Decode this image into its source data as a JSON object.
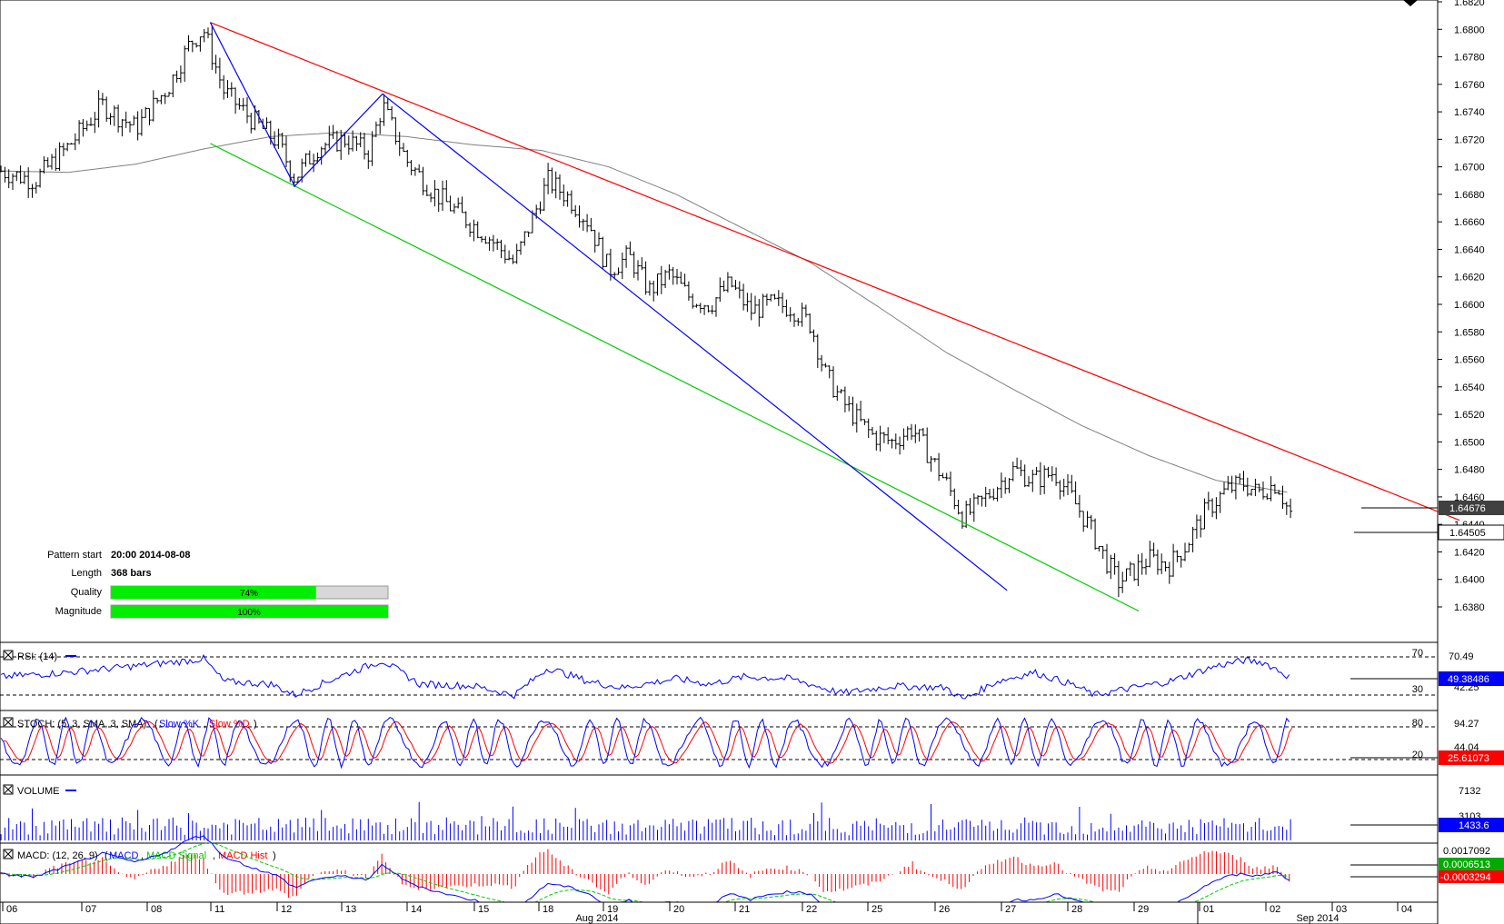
{
  "chart_data": {
    "type": "bar",
    "subtype": "ohlc",
    "price_axis": {
      "ticks": [
        "1.6820",
        "1.6800",
        "1.6780",
        "1.6760",
        "1.6740",
        "1.6720",
        "1.6700",
        "1.6680",
        "1.6660",
        "1.6640",
        "1.6620",
        "1.6600",
        "1.6580",
        "1.6560",
        "1.6540",
        "1.6520",
        "1.6500",
        "1.6480",
        "1.6460",
        "1.6440",
        "1.6420",
        "1.6400",
        "1.6380"
      ],
      "ylim": [
        1.6375,
        1.682
      ]
    },
    "x_axis": {
      "day_labels": [
        "06",
        "07",
        "08",
        "11",
        "12",
        "13",
        "14",
        "15",
        "18",
        "19",
        "20",
        "21",
        "22",
        "25",
        "26",
        "27",
        "28",
        "29",
        "01",
        "02",
        "03",
        "04"
      ],
      "month_labels": [
        "Aug 2014",
        "Sep 2014"
      ]
    },
    "current_price_label": "1.64676",
    "last_price_label": "1.64505",
    "pattern": {
      "start_label": "Pattern start",
      "start_value": "20:00 2014-08-08",
      "length_label": "Length",
      "length_value": "368 bars",
      "quality_label": "Quality",
      "quality_pct": 74,
      "quality_text": "74%",
      "magnitude_label": "Magnitude",
      "magnitude_pct": 100,
      "magnitude_text": "100%"
    },
    "pattern_lines": [
      {
        "color": "#ff0000",
        "points": [
          [
            0.1,
            1.6805
          ],
          [
            18.6,
            1.6443
          ]
        ]
      },
      {
        "color": "#00cc00",
        "points": [
          [
            0.1,
            1.6717
          ],
          [
            13.85,
            1.6377
          ]
        ]
      },
      {
        "color": "#0000ff",
        "points": [
          [
            0.1,
            1.6805
          ],
          [
            1.35,
            1.6686
          ],
          [
            2.65,
            1.6753
          ],
          [
            11.9,
            1.6392
          ]
        ]
      }
    ],
    "price_path": [
      [
        -3.0,
        1.6697
      ],
      [
        -2.5,
        1.669
      ],
      [
        -2.0,
        1.6715
      ],
      [
        -1.5,
        1.6745
      ],
      [
        -1.0,
        1.6728
      ],
      [
        -0.5,
        1.676
      ],
      [
        -0.2,
        1.679
      ],
      [
        0.0,
        1.68
      ],
      [
        0.3,
        1.6755
      ],
      [
        0.7,
        1.6735
      ],
      [
        1.1,
        1.6718
      ],
      [
        1.35,
        1.6692
      ],
      [
        1.7,
        1.6715
      ],
      [
        2.1,
        1.672
      ],
      [
        2.45,
        1.671
      ],
      [
        2.65,
        1.6745
      ],
      [
        3.0,
        1.6705
      ],
      [
        3.4,
        1.6682
      ],
      [
        3.8,
        1.6665
      ],
      [
        4.2,
        1.665
      ],
      [
        4.6,
        1.663
      ],
      [
        4.85,
        1.666
      ],
      [
        5.1,
        1.669
      ],
      [
        5.4,
        1.6678
      ],
      [
        5.7,
        1.666
      ],
      [
        6.0,
        1.6625
      ],
      [
        6.3,
        1.6635
      ],
      [
        6.6,
        1.661
      ],
      [
        6.9,
        1.6622
      ],
      [
        7.2,
        1.6605
      ],
      [
        7.5,
        1.66
      ],
      [
        7.8,
        1.6615
      ],
      [
        8.1,
        1.6595
      ],
      [
        8.4,
        1.66
      ],
      [
        8.7,
        1.6598
      ],
      [
        9.0,
        1.6585
      ],
      [
        9.2,
        1.655
      ],
      [
        9.45,
        1.653
      ],
      [
        9.7,
        1.6515
      ],
      [
        9.9,
        1.6505
      ],
      [
        10.2,
        1.65
      ],
      [
        10.5,
        1.651
      ],
      [
        10.75,
        1.649
      ],
      [
        11.0,
        1.647
      ],
      [
        11.25,
        1.6445
      ],
      [
        11.5,
        1.6455
      ],
      [
        11.75,
        1.6468
      ],
      [
        12.0,
        1.648
      ],
      [
        12.3,
        1.6472
      ],
      [
        12.6,
        1.6478
      ],
      [
        12.85,
        1.646
      ],
      [
        13.1,
        1.644
      ],
      [
        13.35,
        1.6415
      ],
      [
        13.55,
        1.6398
      ],
      [
        13.75,
        1.6405
      ],
      [
        14.0,
        1.6415
      ],
      [
        14.3,
        1.641
      ],
      [
        14.55,
        1.6425
      ],
      [
        14.85,
        1.645
      ],
      [
        15.15,
        1.6465
      ],
      [
        15.4,
        1.647
      ],
      [
        15.6,
        1.6463
      ],
      [
        15.9,
        1.647
      ],
      [
        16.05,
        1.6452
      ],
      [
        16.1,
        1.6448
      ]
    ],
    "ma_path": [
      [
        -3.0,
        1.6697
      ],
      [
        -2.0,
        1.6696
      ],
      [
        -1.0,
        1.6702
      ],
      [
        0.0,
        1.6713
      ],
      [
        1.0,
        1.6722
      ],
      [
        2.0,
        1.6725
      ],
      [
        3.0,
        1.6722
      ],
      [
        4.0,
        1.6716
      ],
      [
        5.0,
        1.6712
      ],
      [
        6.0,
        1.67
      ],
      [
        7.0,
        1.668
      ],
      [
        8.0,
        1.6655
      ],
      [
        9.0,
        1.663
      ],
      [
        10.0,
        1.6598
      ],
      [
        11.0,
        1.6565
      ],
      [
        12.0,
        1.6538
      ],
      [
        13.0,
        1.6512
      ],
      [
        14.0,
        1.649
      ],
      [
        15.0,
        1.6472
      ],
      [
        16.1,
        1.6463
      ]
    ],
    "rsi": {
      "title": "RSI: (14)",
      "levels": [
        "70",
        "30"
      ],
      "axis_labels": [
        "70.49",
        "42.25"
      ],
      "value_label": "49.38486",
      "path": [
        [
          -3.0,
          50
        ],
        [
          -2.0,
          55
        ],
        [
          -1.0,
          62
        ],
        [
          -0.2,
          68
        ],
        [
          0.0,
          70
        ],
        [
          0.3,
          45
        ],
        [
          1.0,
          42
        ],
        [
          1.35,
          30
        ],
        [
          2.0,
          50
        ],
        [
          2.65,
          68
        ],
        [
          3.2,
          42
        ],
        [
          4.0,
          40
        ],
        [
          4.6,
          30
        ],
        [
          5.1,
          60
        ],
        [
          5.7,
          45
        ],
        [
          6.2,
          38
        ],
        [
          7.0,
          48
        ],
        [
          7.5,
          42
        ],
        [
          8.0,
          50
        ],
        [
          8.7,
          48
        ],
        [
          9.45,
          32
        ],
        [
          10.2,
          40
        ],
        [
          11.0,
          38
        ],
        [
          11.25,
          25
        ],
        [
          11.75,
          45
        ],
        [
          12.3,
          55
        ],
        [
          12.85,
          42
        ],
        [
          13.2,
          30
        ],
        [
          13.55,
          35
        ],
        [
          14.3,
          45
        ],
        [
          15.0,
          62
        ],
        [
          15.4,
          68
        ],
        [
          15.7,
          66
        ],
        [
          15.9,
          58
        ],
        [
          16.1,
          49
        ]
      ]
    },
    "stoch": {
      "title": "STOCH: (5, 3, SMA, 3, SMA)",
      "k_label": "Slow %K",
      "d_label": "Slow %D",
      "levels": [
        "80",
        "20"
      ],
      "axis_labels": [
        "94.27",
        "44.04"
      ],
      "value_label": "25.61073"
    },
    "volume": {
      "title": "VOLUME",
      "axis_labels": [
        "7132",
        "3103"
      ],
      "value_label": "1433.6"
    },
    "macd": {
      "title": "MACD: (12, 26, 9)",
      "macd_label": "MACD",
      "signal_label": "MACD Signal",
      "hist_label": "MACD Hist",
      "axis_label": "0.0017092",
      "value_label_1": "0.0006513",
      "value_label_2": "-0.0003294"
    },
    "colors": {
      "bars": "#000000",
      "moving_average": "#808080",
      "resistance": "#ff0000",
      "support": "#00cc00",
      "zigzag": "#0000ff",
      "rsi_line": "#0000ff",
      "stoch_k": "#0000ff",
      "stoch_d": "#ff0000",
      "volume": "#0000ff",
      "macd_line": "#0000ff",
      "macd_signal": "#00cc00",
      "macd_hist": "#ff0000",
      "gauge_fill": "#00ee00",
      "gauge_bg": "#d8d8d8",
      "price_box": "#404040",
      "rsi_box": "#0000ff",
      "stoch_box": "#ff0000",
      "volume_box": "#0000ff",
      "macd_box_1": "#00aa00",
      "macd_box_2": "#ff0000"
    },
    "grid": false
  }
}
